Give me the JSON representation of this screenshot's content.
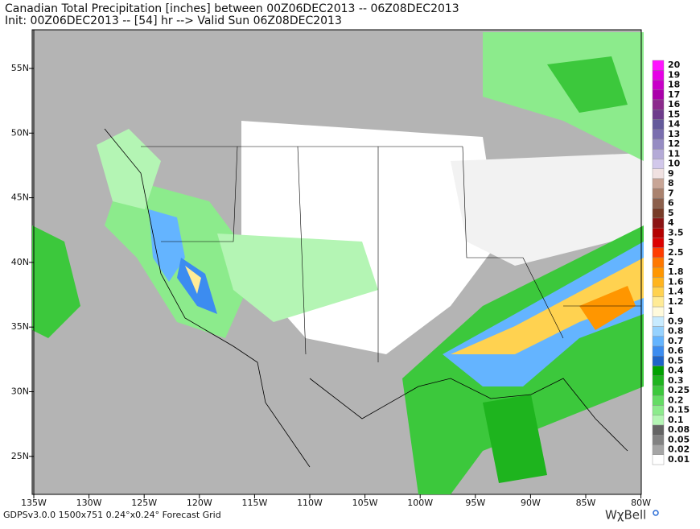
{
  "header": {
    "line1": "Canadian Total Precipitation [inches] between 00Z06DEC2013 -- 06Z08DEC2013",
    "line2": "Init: 00Z06DEC2013 -- [54] hr --> Valid Sun 06Z08DEC2013"
  },
  "lat_labels": [
    "55N",
    "50N",
    "45N",
    "40N",
    "35N",
    "30N",
    "25N"
  ],
  "lon_labels": [
    "135W",
    "130W",
    "125W",
    "120W",
    "115W",
    "110W",
    "105W",
    "100W",
    "95W",
    "90W",
    "85W",
    "80W"
  ],
  "legend": {
    "levels": [
      {
        "label": "20",
        "color": "#ff14ff"
      },
      {
        "label": "19",
        "color": "#e600e6"
      },
      {
        "label": "18",
        "color": "#c800c8"
      },
      {
        "label": "17",
        "color": "#aa00aa"
      },
      {
        "label": "16",
        "color": "#8c2a8c"
      },
      {
        "label": "15",
        "color": "#6e3c8c"
      },
      {
        "label": "14",
        "color": "#645a9b"
      },
      {
        "label": "13",
        "color": "#7a6eaf"
      },
      {
        "label": "12",
        "color": "#968cc3"
      },
      {
        "label": "11",
        "color": "#b4aad7"
      },
      {
        "label": "10",
        "color": "#d2c8eb"
      },
      {
        "label": "9",
        "color": "#f0e1e1"
      },
      {
        "label": "8",
        "color": "#c8a596"
      },
      {
        "label": "7",
        "color": "#aa826e"
      },
      {
        "label": "6",
        "color": "#8c5f4b"
      },
      {
        "label": "5",
        "color": "#783c28"
      },
      {
        "label": "4",
        "color": "#8c1414"
      },
      {
        "label": "3.5",
        "color": "#b40000"
      },
      {
        "label": "3",
        "color": "#dc0000"
      },
      {
        "label": "2.5",
        "color": "#ff3c00"
      },
      {
        "label": "2",
        "color": "#ff7800"
      },
      {
        "label": "1.8",
        "color": "#ff9600"
      },
      {
        "label": "1.6",
        "color": "#ffb41e"
      },
      {
        "label": "1.4",
        "color": "#ffd250"
      },
      {
        "label": "1.2",
        "color": "#ffeb96"
      },
      {
        "label": "1",
        "color": "#fffadc"
      },
      {
        "label": "0.9",
        "color": "#c8ebff"
      },
      {
        "label": "0.8",
        "color": "#96d2ff"
      },
      {
        "label": "0.7",
        "color": "#64b4ff"
      },
      {
        "label": "0.6",
        "color": "#3c8cf0"
      },
      {
        "label": "0.5",
        "color": "#1e64c8"
      },
      {
        "label": "0.4",
        "color": "#00a000"
      },
      {
        "label": "0.3",
        "color": "#1eb41e"
      },
      {
        "label": "0.25",
        "color": "#3cc83c"
      },
      {
        "label": "0.2",
        "color": "#64dc64"
      },
      {
        "label": "0.15",
        "color": "#8ceb8c"
      },
      {
        "label": "0.1",
        "color": "#b4f5b4"
      },
      {
        "label": "0.08",
        "color": "#646464"
      },
      {
        "label": "0.05",
        "color": "#828282"
      },
      {
        "label": "0.02",
        "color": "#a5a5a5"
      },
      {
        "label": "0.01",
        "color": "#ffffff"
      }
    ]
  },
  "footer": "GDPSv3.0.0 1500x751 0.24°x0.24° Forecast Grid",
  "brand": "WχBell"
}
